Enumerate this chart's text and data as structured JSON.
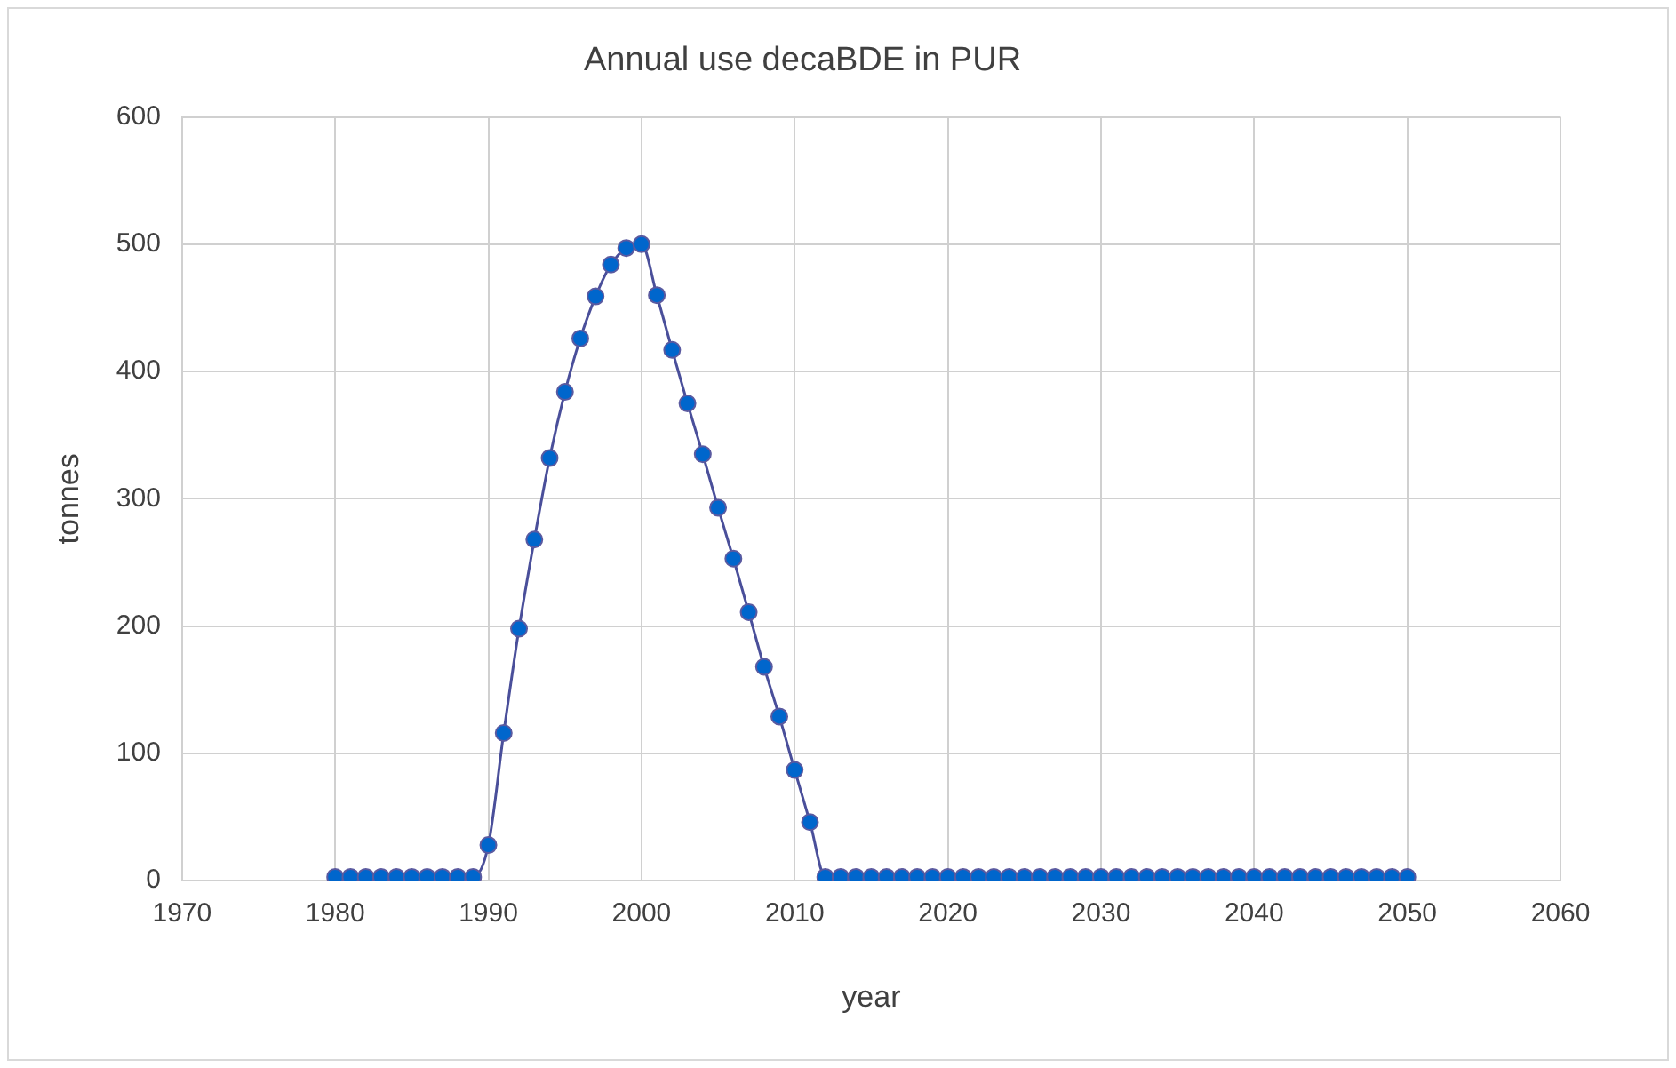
{
  "chart_data": {
    "type": "line",
    "title": "Annual use decaBDE in PUR",
    "xlabel": "year",
    "ylabel": "tonnes",
    "x": [
      1980,
      1981,
      1982,
      1983,
      1984,
      1985,
      1986,
      1987,
      1988,
      1989,
      1990,
      1991,
      1992,
      1993,
      1994,
      1995,
      1996,
      1997,
      1998,
      1999,
      2000,
      2001,
      2002,
      2003,
      2004,
      2005,
      2006,
      2007,
      2008,
      2009,
      2010,
      2011,
      2012,
      2013,
      2014,
      2015,
      2016,
      2017,
      2018,
      2019,
      2020,
      2021,
      2022,
      2023,
      2024,
      2025,
      2026,
      2027,
      2028,
      2029,
      2030,
      2031,
      2032,
      2033,
      2034,
      2035,
      2036,
      2037,
      2038,
      2039,
      2040,
      2041,
      2042,
      2043,
      2044,
      2045,
      2046,
      2047,
      2048,
      2049,
      2050
    ],
    "series": [
      {
        "color": "#0066cc",
        "values": [
          3,
          3,
          3,
          3,
          3,
          3,
          3,
          3,
          3,
          3,
          28,
          116,
          198,
          268,
          332,
          384,
          426,
          459,
          484,
          497,
          500,
          460,
          417,
          375,
          335,
          293,
          253,
          211,
          168,
          129,
          87,
          46,
          3,
          3,
          3,
          3,
          3,
          3,
          3,
          3,
          3,
          3,
          3,
          3,
          3,
          3,
          3,
          3,
          3,
          3,
          3,
          3,
          3,
          3,
          3,
          3,
          3,
          3,
          3,
          3,
          3,
          3,
          3,
          3,
          3,
          3,
          3,
          3,
          3,
          3,
          3
        ]
      }
    ],
    "xlim": [
      1970,
      2060
    ],
    "xticks": [
      1970,
      1980,
      1990,
      2000,
      2010,
      2020,
      2030,
      2040,
      2050,
      2060
    ],
    "ylim": [
      0,
      600
    ],
    "yticks": [
      0,
      100,
      200,
      300,
      400,
      500,
      600
    ],
    "grid": true,
    "legend": false,
    "marker": "circle",
    "line_style": "solid"
  }
}
